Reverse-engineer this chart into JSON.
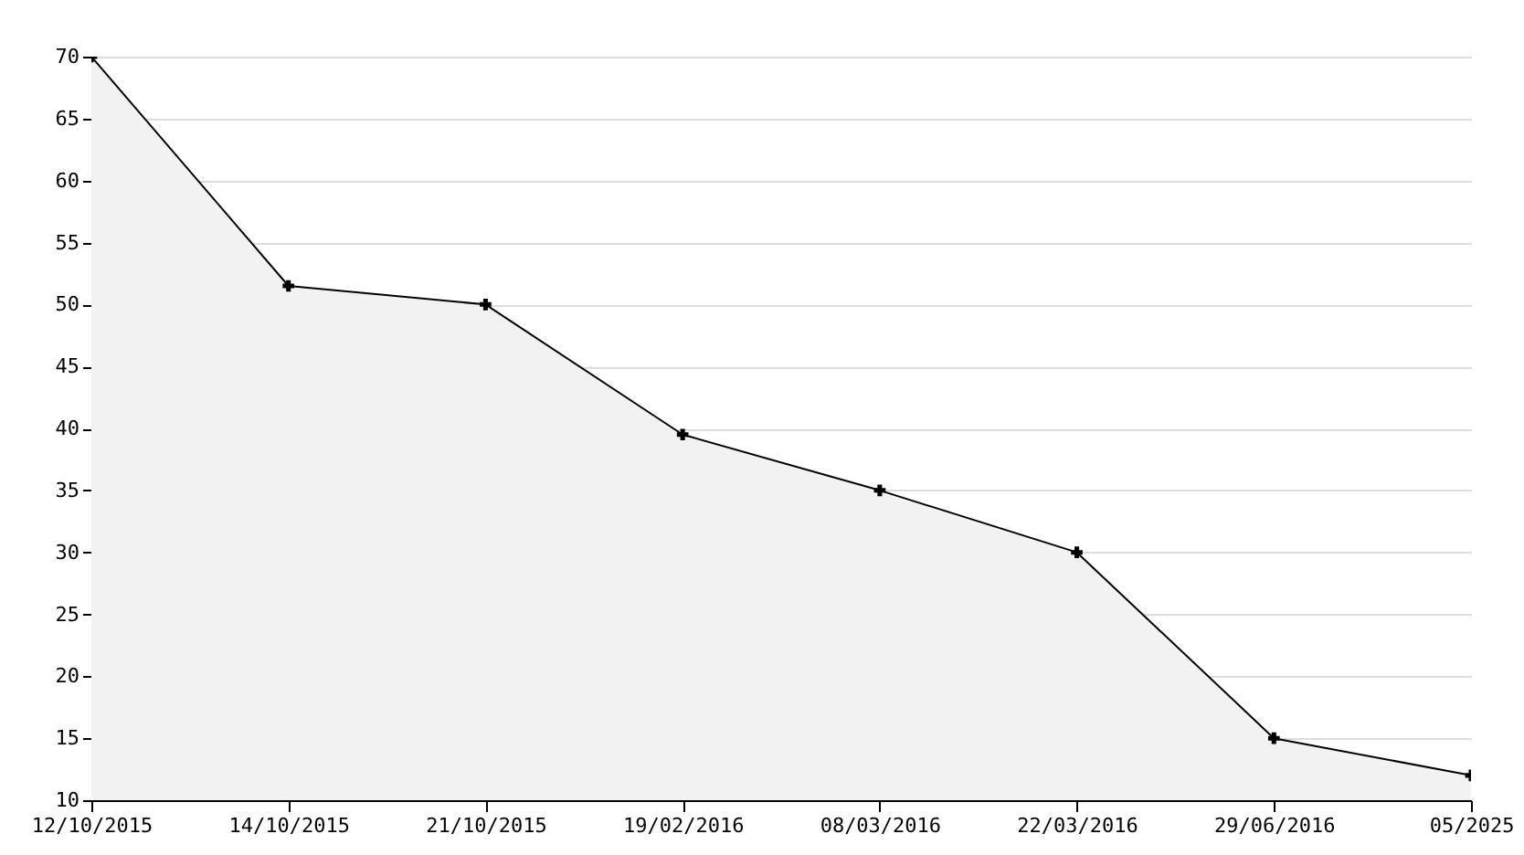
{
  "chart_data": {
    "type": "area",
    "categories": [
      "12/10/2015",
      "14/10/2015",
      "21/10/2015",
      "19/02/2016",
      "08/03/2016",
      "22/03/2016",
      "29/06/2016",
      "05/2025"
    ],
    "series": [
      {
        "color": "#000000",
        "values": [
          70,
          51.5,
          50,
          39.5,
          35,
          30,
          15,
          12
        ]
      }
    ],
    "ylim": [
      10,
      70
    ],
    "yticks": [
      10,
      15,
      20,
      25,
      30,
      35,
      40,
      45,
      50,
      55,
      60,
      65,
      70
    ],
    "grid": "y",
    "marker": "cross",
    "line_style": "solid"
  }
}
